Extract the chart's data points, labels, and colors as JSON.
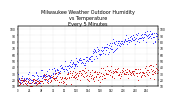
{
  "title": "Milwaukee Weather Outdoor Humidity\nvs Temperature\nEvery 5 Minutes",
  "title_fontsize": 3.5,
  "background_color": "#ffffff",
  "grid_color": "#cccccc",
  "blue_color": "#1a1aff",
  "red_color": "#cc0000",
  "ylim_left": [
    10,
    105
  ],
  "ylim_right": [
    10,
    105
  ],
  "n_points": 288,
  "seed": 7
}
